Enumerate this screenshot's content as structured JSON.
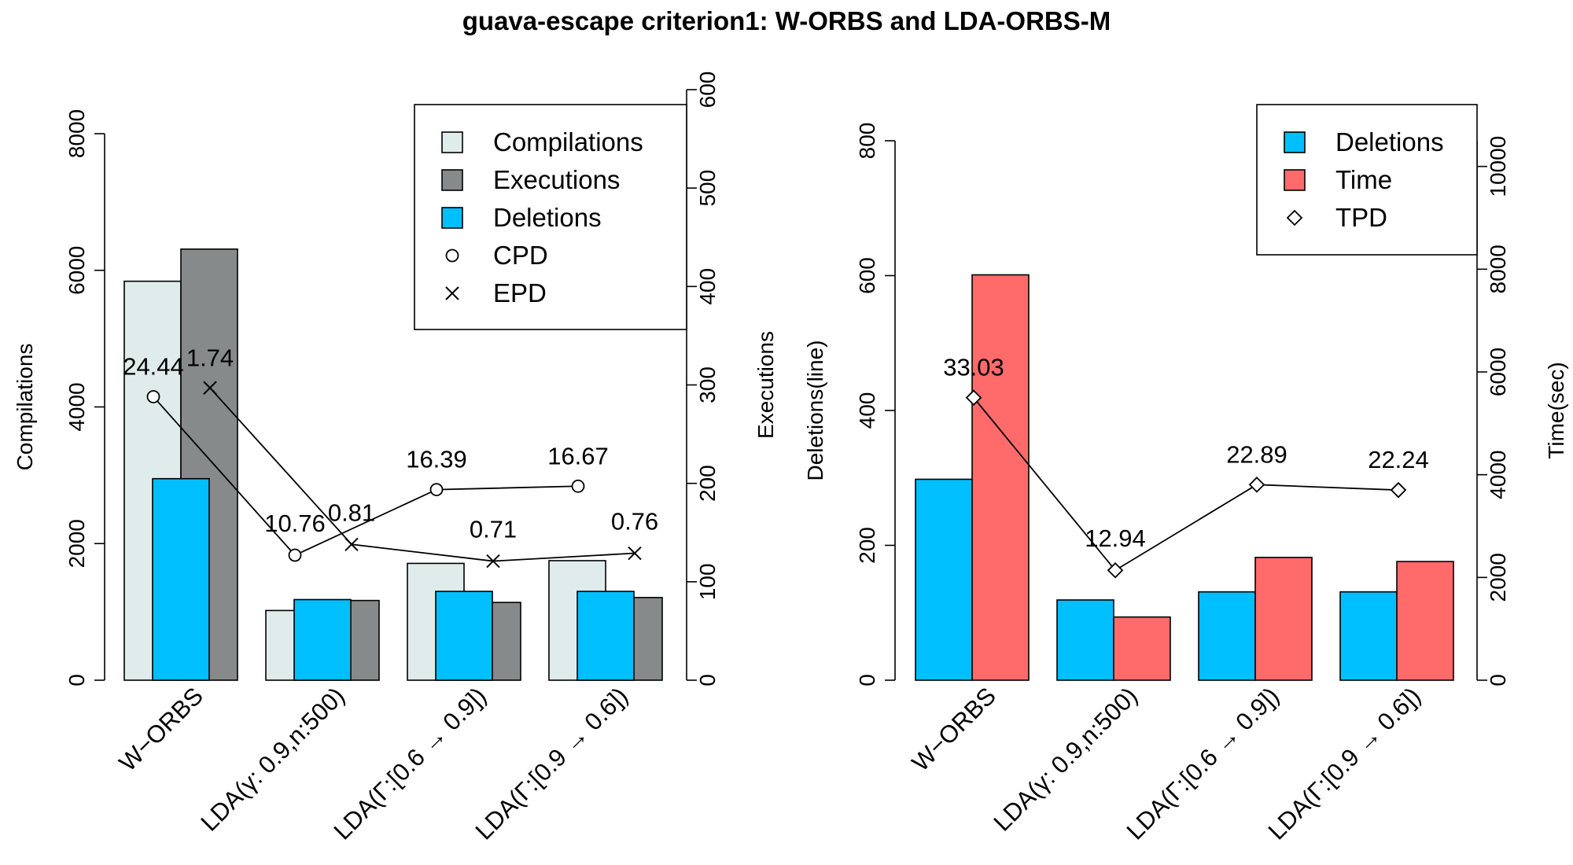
{
  "title": "guava-escape criterion1: W-ORBS and LDA-ORBS-M",
  "colors": {
    "compilations": "#e0ecec",
    "executions": "#878a8a",
    "deletions": "#00bfff",
    "time": "#ff6a6a",
    "marker": "#000000"
  },
  "chart_data": [
    {
      "type": "bar",
      "panel": "left",
      "categories": [
        "W−ORBS",
        "LDA(γ: 0.9,n:500)",
        "LDA(Γ:[0.6 → 0.9])",
        "LDA(Γ:[0.9 → 0.6])"
      ],
      "ylabel_left": "Compilations",
      "ylabel_right": "Executions",
      "ylim_left": [
        0,
        8000
      ],
      "yticks_left": [
        "0",
        "2000",
        "4000",
        "6000",
        "8000"
      ],
      "ylim_right": [
        0,
        600
      ],
      "yticks_right": [
        "0",
        "100",
        "200",
        "300",
        "400",
        "500",
        "600"
      ],
      "series": [
        {
          "name": "Compilations",
          "axis": "left",
          "values": [
            5840,
            1020,
            1710,
            1750
          ]
        },
        {
          "name": "Deletions",
          "axis": "left",
          "values": [
            2950,
            1180,
            1300,
            1300
          ]
        },
        {
          "name": "Executions",
          "axis": "right",
          "values": [
            438,
            81,
            79,
            84
          ]
        }
      ],
      "lines": [
        {
          "name": "CPD",
          "axis": "left",
          "marker": "circle",
          "values": [
            24.44,
            10.76,
            16.39,
            16.67
          ],
          "positions": [
            4150,
            1830,
            2790,
            2840
          ],
          "labels": [
            "24.44",
            "10.76",
            "16.39",
            "16.67"
          ]
        },
        {
          "name": "EPD",
          "axis": "right",
          "marker": "x",
          "values": [
            1.74,
            0.81,
            0.71,
            0.76
          ],
          "positions": [
            297,
            138,
            121,
            129
          ],
          "labels": [
            "1.74",
            "0.81",
            "0.71",
            "0.76"
          ]
        }
      ],
      "legend": [
        "Compilations",
        "Executions",
        "Deletions",
        "CPD",
        "EPD"
      ],
      "legend_position": "top-right"
    },
    {
      "type": "bar",
      "panel": "right",
      "categories": [
        "W−ORBS",
        "LDA(γ: 0.9,n:500)",
        "LDA(Γ:[0.6 → 0.9])",
        "LDA(Γ:[0.9 → 0.6])"
      ],
      "ylabel_left": "Deletions(line)",
      "ylabel_right": "Time(sec)",
      "ylim_left": [
        0,
        800
      ],
      "yticks_left": [
        "0",
        "200",
        "400",
        "600",
        "800"
      ],
      "ylim_right": [
        0,
        10500
      ],
      "yticks_right": [
        "0",
        "2000",
        "4000",
        "6000",
        "8000",
        "10000"
      ],
      "series": [
        {
          "name": "Deletions",
          "axis": "left",
          "values": [
            298,
            119,
            131,
            131
          ]
        },
        {
          "name": "Time",
          "axis": "right",
          "values": [
            7890,
            1230,
            2390,
            2310
          ]
        }
      ],
      "lines": [
        {
          "name": "TPD",
          "axis": "left",
          "marker": "diamond",
          "values": [
            33.03,
            12.94,
            22.89,
            22.24
          ],
          "positions": [
            419,
            163,
            290,
            282
          ],
          "labels": [
            "33.03",
            "12.94",
            "22.89",
            "22.24"
          ]
        }
      ],
      "legend": [
        "Deletions",
        "Time",
        "TPD"
      ],
      "legend_position": "top-right"
    }
  ]
}
